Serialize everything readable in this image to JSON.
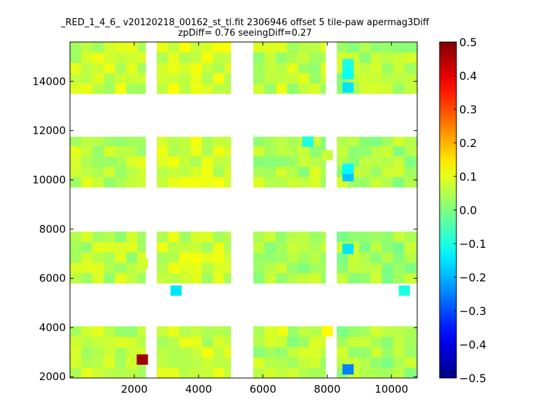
{
  "chart_data": {
    "type": "heatmap",
    "title": "_RED_1_4_6_ v20120218_00162_st_tl.fit 2306946 offset 5 tile-paw apermag3Diff",
    "subtitle": "zpDiff= 0.76 seeingDiff=0.27",
    "xlabel": "",
    "ylabel": "",
    "xlim": [
      0,
      10800
    ],
    "ylim": [
      1950,
      15600
    ],
    "x_ticks": [
      2000,
      4000,
      6000,
      8000,
      10000
    ],
    "y_ticks": [
      2000,
      4000,
      6000,
      8000,
      10000,
      12000,
      14000
    ],
    "x_tick_labels": [
      "2000",
      "4000",
      "6000",
      "8000",
      "10000"
    ],
    "y_tick_labels": [
      "2000",
      "4000",
      "6000",
      "8000",
      "10000",
      "12000",
      "14000"
    ],
    "colorbar": {
      "min": -0.5,
      "max": 0.5,
      "colormap": "jet",
      "ticks": [
        0.5,
        0.4,
        0.3,
        0.2,
        0.1,
        0.0,
        -0.1,
        -0.2,
        -0.3,
        -0.4,
        -0.5
      ],
      "tick_labels": [
        "0.5",
        "0.4",
        "0.3",
        "0.2",
        "0.1",
        "0.0",
        "−0.1",
        "−0.2",
        "−0.3",
        "−0.4",
        "−0.5"
      ]
    },
    "cell_size": [
      350,
      420
    ],
    "detector_columns": [
      {
        "x0": 0,
        "x1": 2350
      },
      {
        "x0": 2700,
        "x1": 5000
      },
      {
        "x0": 5700,
        "x1": 7950
      },
      {
        "x0": 8300,
        "x1": 10800
      }
    ],
    "detector_rows": [
      {
        "y0": 1950,
        "y1": 4050
      },
      {
        "y0": 5800,
        "y1": 7900
      },
      {
        "y0": 9700,
        "y1": 11750
      },
      {
        "y0": 13500,
        "y1": 15600
      }
    ],
    "outliers": [
      {
        "x": 2250,
        "y": 2700,
        "value": 0.47
      },
      {
        "x": 8650,
        "y": 2300,
        "value": -0.25
      },
      {
        "x": 8000,
        "y": 3850,
        "value": 0.13
      },
      {
        "x": 8650,
        "y": 13750,
        "value": -0.15
      },
      {
        "x": 8650,
        "y": 14300,
        "value": -0.12
      },
      {
        "x": 8650,
        "y": 14700,
        "value": -0.1
      },
      {
        "x": 8650,
        "y": 10150,
        "value": -0.18
      },
      {
        "x": 8650,
        "y": 10450,
        "value": -0.13
      },
      {
        "x": 8650,
        "y": 7200,
        "value": -0.15
      },
      {
        "x": 3300,
        "y": 5500,
        "value": -0.15
      },
      {
        "x": 10400,
        "y": 5500,
        "value": -0.1
      },
      {
        "x": 7400,
        "y": 11550,
        "value": -0.1
      },
      {
        "x": 8000,
        "y": 11000,
        "value": 0.07
      },
      {
        "x": 2250,
        "y": 6600,
        "value": 0.08
      },
      {
        "x": 6600,
        "y": 3850,
        "value": 0.11
      }
    ]
  }
}
